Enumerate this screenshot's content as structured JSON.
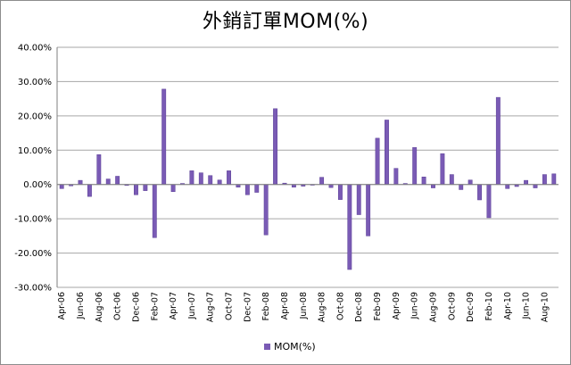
{
  "chart_data": {
    "type": "bar",
    "title": "外銷訂單MOM(%)",
    "xlabel": "",
    "ylabel": "",
    "ylim": [
      -30,
      40
    ],
    "yticks": [
      "40.00%",
      "30.00%",
      "20.00%",
      "10.00%",
      "0.00%",
      "-10.00%",
      "-20.00%",
      "-30.00%"
    ],
    "grid": "horizontal",
    "legend_position": "bottom",
    "colors": {
      "bar": "#7a5bb5",
      "bar_edge": "#5b3f96",
      "grid": "#a6a6a6",
      "axis": "#7f7f7f"
    },
    "categories": [
      "Apr-06",
      "May-06",
      "Jun-06",
      "Jul-06",
      "Aug-06",
      "Sep-06",
      "Oct-06",
      "Nov-06",
      "Dec-06",
      "Jan-07",
      "Feb-07",
      "Mar-07",
      "Apr-07",
      "May-07",
      "Jun-07",
      "Jul-07",
      "Aug-07",
      "Sep-07",
      "Oct-07",
      "Nov-07",
      "Dec-07",
      "Jan-08",
      "Feb-08",
      "Mar-08",
      "Apr-08",
      "May-08",
      "Jun-08",
      "Jul-08",
      "Aug-08",
      "Sep-08",
      "Oct-08",
      "Nov-08",
      "Dec-08",
      "Jan-09",
      "Feb-09",
      "Mar-09",
      "Apr-09",
      "May-09",
      "Jun-09",
      "Jul-09",
      "Aug-09",
      "Sep-09",
      "Oct-09",
      "Nov-09",
      "Dec-09",
      "Jan-10",
      "Feb-10",
      "Mar-10",
      "Apr-10",
      "May-10",
      "Jun-10",
      "Jul-10",
      "Aug-10",
      "Sep-10"
    ],
    "xtick_labels": [
      "Apr-06",
      "Jun-06",
      "Aug-06",
      "Oct-06",
      "Dec-06",
      "Feb-07",
      "Apr-07",
      "Jun-07",
      "Aug-07",
      "Oct-07",
      "Dec-07",
      "Feb-08",
      "Apr-08",
      "Jun-08",
      "Aug-08",
      "Oct-08",
      "Dec-08",
      "Feb-09",
      "Apr-09",
      "Jun-09",
      "Aug-09",
      "Oct-09",
      "Dec-09",
      "Feb-10",
      "Apr-10",
      "Jun-10",
      "Aug-10"
    ],
    "series": [
      {
        "name": "MOM(%)",
        "values": [
          -1.2,
          -0.4,
          1.2,
          -3.5,
          8.7,
          1.6,
          2.4,
          -0.3,
          -3.0,
          -1.8,
          -15.5,
          27.8,
          -2.1,
          0.3,
          4.0,
          3.4,
          2.6,
          1.3,
          4.0,
          -0.8,
          -3.0,
          -2.3,
          -14.7,
          22.1,
          0.4,
          -0.8,
          -0.5,
          0.0,
          2.1,
          -0.9,
          -4.4,
          -24.8,
          -8.8,
          -15.0,
          13.5,
          18.8,
          4.7,
          0.3,
          10.8,
          2.2,
          -1.0,
          9.0,
          2.9,
          -1.5,
          1.3,
          -4.5,
          -9.7,
          25.4,
          -1.2,
          -0.6,
          1.2,
          -1.0,
          2.9,
          3.1
        ]
      }
    ]
  }
}
